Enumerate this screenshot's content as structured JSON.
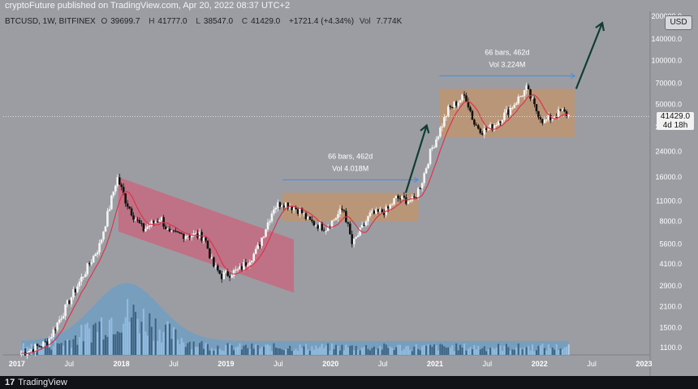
{
  "header": {
    "publisher": "cryptoFuture published on TradingView.com, Apr 20, 2022 08:37 UTC+2",
    "symbol": "BTCUSD, 1W, BITFINEX",
    "open_label": "O",
    "open": "39699.7",
    "high_label": "H",
    "high": "41777.0",
    "low_label": "L",
    "low": "38547.0",
    "close_label": "C",
    "close": "41429.0",
    "change": "+1721.4 (+4.34%)",
    "vol_label": "Vol",
    "vol": "7.774K"
  },
  "currency_badge": "USD",
  "price_tag": {
    "price": "41429.0",
    "countdown": "4d 18h"
  },
  "footer": {
    "logo_text": "TradingView"
  },
  "colors": {
    "background": "#9c9da2",
    "bull_candle": "#f5f5f5",
    "bear_candle": "#111111",
    "ma_line": "#d9364f",
    "volume_area": "#5b9fd6",
    "channel_fill": "#dc4f6d",
    "range_fill": "#c4946a",
    "arrow": "#0f3d33",
    "measure_line": "#3f8fe8"
  },
  "chart_data": {
    "type": "candlestick",
    "symbol": "BTCUSD",
    "interval": "1W",
    "y_scale": "log",
    "y_ticks": [
      "200000.0",
      "140000.0",
      "100000.0",
      "70000.0",
      "50000.0",
      "35000.0",
      "24000.0",
      "16000.0",
      "11000.0",
      "8000.0",
      "5600.0",
      "4100.0",
      "2900.0",
      "2100.0",
      "1500.0",
      "1100.0"
    ],
    "x_ticks": [
      "2017",
      "Jul",
      "2018",
      "Jul",
      "2019",
      "Jul",
      "2020",
      "Jul",
      "2021",
      "Jul",
      "2022",
      "Jul",
      "2023"
    ],
    "last_price": 41429.0,
    "price_path": [
      [
        "2017-01",
        1000
      ],
      [
        "2017-04",
        1200
      ],
      [
        "2017-07",
        2600
      ],
      [
        "2017-10",
        5500
      ],
      [
        "2017-12",
        16000
      ],
      [
        "2018-01",
        11000
      ],
      [
        "2018-02",
        8500
      ],
      [
        "2018-03",
        7000
      ],
      [
        "2018-05",
        8500
      ],
      [
        "2018-06",
        6500
      ],
      [
        "2018-08",
        6500
      ],
      [
        "2018-10",
        6300
      ],
      [
        "2018-11",
        4000
      ],
      [
        "2018-12",
        3400
      ],
      [
        "2019-02",
        3700
      ],
      [
        "2019-04",
        5000
      ],
      [
        "2019-06",
        10000
      ],
      [
        "2019-07",
        10800
      ],
      [
        "2019-09",
        9500
      ],
      [
        "2019-10",
        8000
      ],
      [
        "2019-12",
        7200
      ],
      [
        "2020-02",
        9800
      ],
      [
        "2020-03",
        5500
      ],
      [
        "2020-05",
        8800
      ],
      [
        "2020-07",
        9500
      ],
      [
        "2020-08",
        11500
      ],
      [
        "2020-10",
        11000
      ],
      [
        "2020-11",
        15000
      ],
      [
        "2020-12",
        24000
      ],
      [
        "2021-01",
        33000
      ],
      [
        "2021-02",
        46000
      ],
      [
        "2021-04",
        58000
      ],
      [
        "2021-05",
        37000
      ],
      [
        "2021-06",
        33000
      ],
      [
        "2021-07",
        35000
      ],
      [
        "2021-09",
        46000
      ],
      [
        "2021-11",
        64000
      ],
      [
        "2021-12",
        47000
      ],
      [
        "2022-01",
        38000
      ],
      [
        "2022-03",
        45000
      ],
      [
        "2022-04",
        41429
      ]
    ],
    "volume_peak_label": "",
    "annotations": [
      {
        "text_bars": "66 bars, 462d",
        "text_vol": "Vol 4.018M",
        "range_low": 8000,
        "range_high": 12500,
        "from": "2019-07",
        "to": "2020-10"
      },
      {
        "text_bars": "66 bars, 462d",
        "text_vol": "Vol 3.224M",
        "range_low": 30000,
        "range_high": 64000,
        "from": "2021-01",
        "to": "2022-04"
      }
    ]
  }
}
